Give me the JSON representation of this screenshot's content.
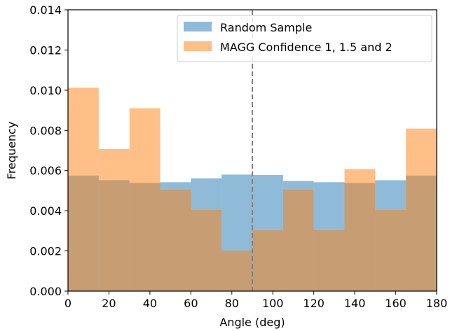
{
  "chart_data": {
    "type": "bar",
    "xlabel": "Angle (deg)",
    "ylabel": "Frequency",
    "xlim": [
      0,
      180
    ],
    "ylim": [
      0,
      0.014
    ],
    "xticks": [
      "0",
      "20",
      "40",
      "60",
      "80",
      "100",
      "120",
      "140",
      "160",
      "180"
    ],
    "yticks": [
      "0.000",
      "0.002",
      "0.004",
      "0.006",
      "0.008",
      "0.010",
      "0.012",
      "0.014"
    ],
    "bin_edges": [
      0,
      15,
      30,
      45,
      60,
      75,
      90,
      105,
      120,
      135,
      150,
      165,
      180
    ],
    "series": [
      {
        "name": "Random Sample",
        "color": "#1f77b4",
        "opacity": 0.5,
        "values": [
          0.00575,
          0.00552,
          0.00538,
          0.00542,
          0.00561,
          0.0058,
          0.00578,
          0.00548,
          0.00542,
          0.00538,
          0.00552,
          0.00575
        ]
      },
      {
        "name": "MAGG Confidence 1, 1.5 and 2",
        "color": "#ff7f0e",
        "opacity": 0.5,
        "values": [
          0.01012,
          0.00707,
          0.0091,
          0.00505,
          0.00404,
          0.00202,
          0.00303,
          0.00505,
          0.00303,
          0.00607,
          0.00404,
          0.00809
        ]
      }
    ],
    "vline": {
      "x": 90,
      "color": "#808080",
      "style": "dashed"
    },
    "legend_position": "top-right"
  }
}
